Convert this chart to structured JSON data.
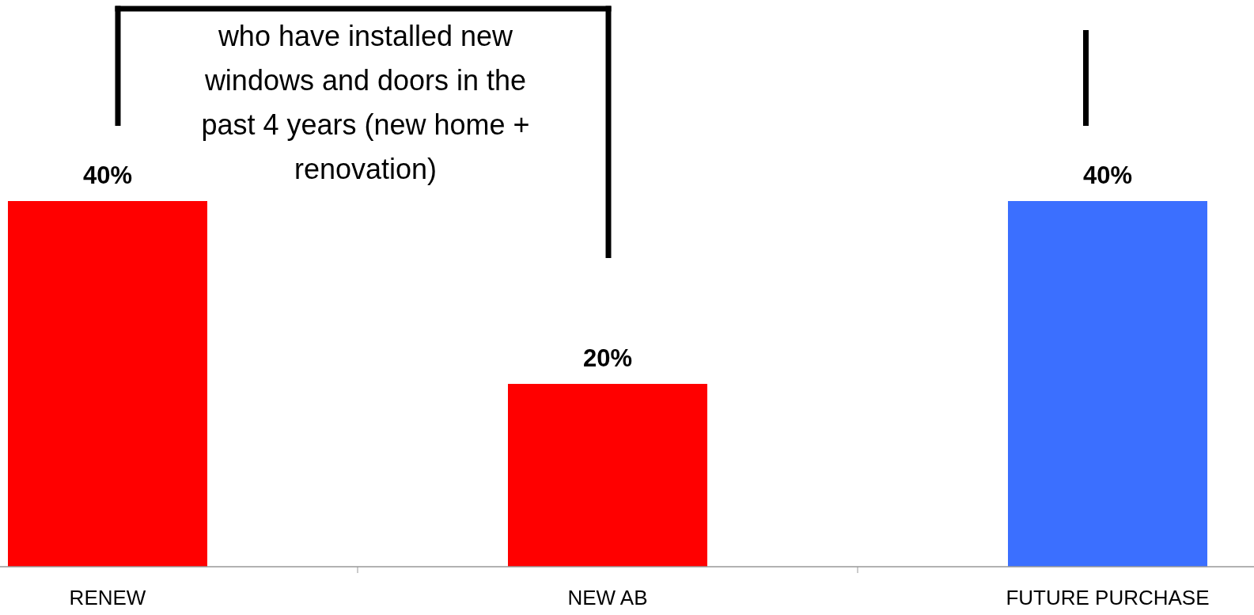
{
  "chart_data": {
    "type": "bar",
    "categories": [
      "RENEW",
      "NEW AB",
      "FUTURE PURCHASE"
    ],
    "values": [
      40,
      20,
      40
    ],
    "colors": [
      "#ff0000",
      "#ff0000",
      "#3b6fff"
    ],
    "value_labels": [
      "40%",
      "20%",
      "40%"
    ],
    "annotations": [
      "who have installed new windows and doors in the past 4 years (new home + renovation)"
    ]
  }
}
